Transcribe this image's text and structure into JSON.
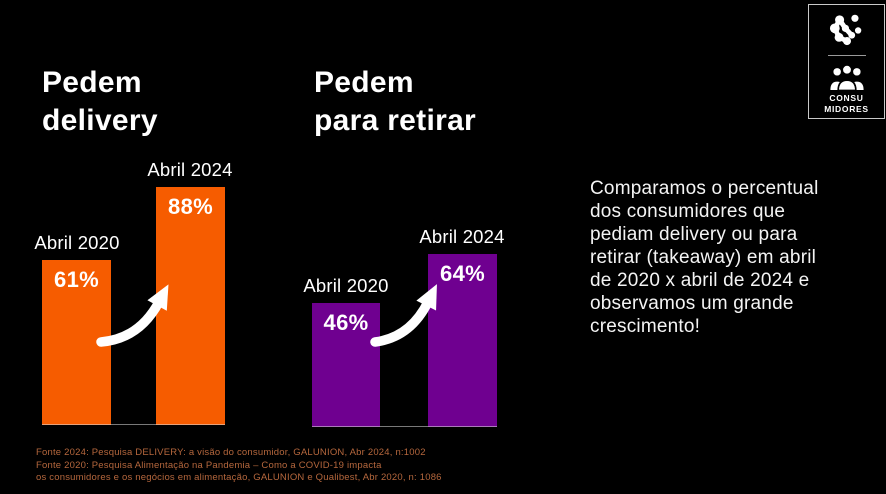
{
  "slide": {
    "background": "#000000",
    "accent_orange": "#F65C00",
    "accent_purple": "#6F0090",
    "text_color": "#FFFFFF"
  },
  "chart_data": [
    {
      "type": "bar",
      "title": "Pedem delivery",
      "title_lines": [
        "Pedem",
        "delivery"
      ],
      "categories": [
        "Abril 2020",
        "Abril 2024"
      ],
      "values": [
        61,
        88
      ],
      "value_labels": [
        "61%",
        "88%"
      ],
      "bar_color": "#F65C00",
      "ylim": [
        0,
        100
      ],
      "annotation": "white-upward-curved-arrow"
    },
    {
      "type": "bar",
      "title": "Pedem para retirar",
      "title_lines": [
        "Pedem",
        "para retirar"
      ],
      "categories": [
        "Abril 2020",
        "Abril 2024"
      ],
      "values": [
        46,
        64
      ],
      "value_labels": [
        "46%",
        "64%"
      ],
      "bar_color": "#6F0090",
      "ylim": [
        0,
        100
      ],
      "annotation": "white-upward-curved-arrow"
    }
  ],
  "commentary": {
    "text": "Comparamos o percentual\ndos consumidores que\npediam delivery ou para\nretirar (takeaway) em abril\nde 2020  x abril de 2024 e\nobservamos um grande\ncrescimento!"
  },
  "logo_panel": {
    "brand_icon": "galunion-network-icon",
    "audience_icon": "people-group-icon",
    "label_line1": "CONSU",
    "label_line2": "MIDORES"
  },
  "sources": {
    "color": "#B5673D",
    "lines": [
      "Fonte 2024: Pesquisa DELIVERY: a visão do consumidor, GALUNION, Abr 2024, n:1002",
      "Fonte 2020: Pesquisa Alimentação na Pandemia – Como a COVID-19 impacta",
      "os consumidores e os negócios em alimentação, GALUNION e Qualibest, Abr 2020, n: 1086"
    ]
  }
}
